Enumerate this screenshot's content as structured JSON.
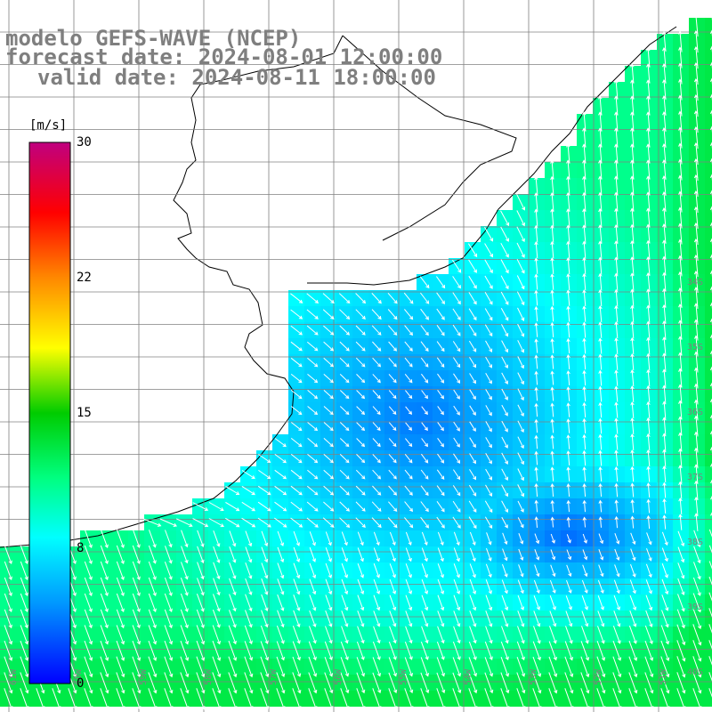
{
  "header": {
    "model_line": "modelo GEFS-WAVE (NCEP)",
    "forecast_line": "forecast date: 2024-08-01 12:00:00",
    "valid_line": "valid date: 2024-08-11 18:00:00"
  },
  "colorbar": {
    "unit": "[m/s]",
    "ticks": [
      "30",
      "22",
      "15",
      "8",
      "0"
    ],
    "tick_values": [
      30,
      22,
      15,
      8,
      0
    ],
    "min": 0,
    "max": 30,
    "colors": [
      "#0000ff",
      "#00aaff",
      "#00ffff",
      "#00ff66",
      "#00dd00",
      "#aaff00",
      "#ffff00",
      "#ff8800",
      "#ff2200",
      "#ff0000",
      "#cc0066",
      "#cc0088"
    ]
  },
  "map": {
    "lon_labels": [
      "61W",
      "60W",
      "59W",
      "58W",
      "57W",
      "56W",
      "55W",
      "54W",
      "53W",
      "52W",
      "51W"
    ],
    "lat_labels": [
      "34S",
      "35S",
      "36S",
      "37S",
      "38S",
      "39S",
      "40S"
    ],
    "land_color": "#ffffff",
    "grid_color": "#808080",
    "arrow_color": "#ffffff"
  }
}
